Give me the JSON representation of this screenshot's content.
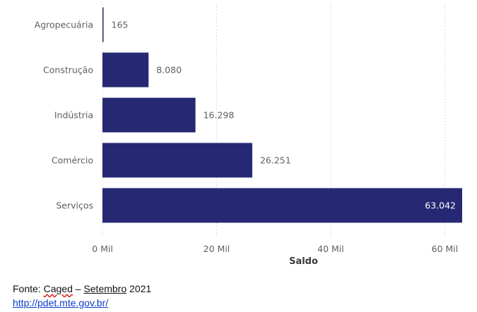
{
  "chart_data": {
    "type": "bar",
    "orientation": "horizontal",
    "categories": [
      "Agropecuária",
      "Construção",
      "Indústria",
      "Comércio",
      "Serviços"
    ],
    "values": [
      165,
      8080,
      16298,
      26251,
      63042
    ],
    "value_labels": [
      "165",
      "8.080",
      "16.298",
      "26.251",
      "63.042"
    ],
    "x_ticks": [
      0,
      20000,
      40000,
      60000
    ],
    "x_tick_labels": [
      "0 Mil",
      "20 Mil",
      "40 Mil",
      "60 Mil"
    ],
    "xlabel": "Saldo",
    "ylabel": "",
    "xlim": [
      0,
      63042
    ],
    "grid": "vertical-dotted",
    "bar_color": "#262873"
  },
  "source": {
    "prefix": "Fonte: ",
    "caged": "Caged",
    "dash": " – ",
    "month": "Setembro",
    "year": " 2021",
    "url": "http://pdet.mte.gov.br/"
  }
}
